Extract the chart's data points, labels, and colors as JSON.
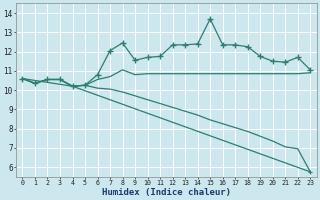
{
  "xlabel": "Humidex (Indice chaleur)",
  "xlim": [
    -0.5,
    23.5
  ],
  "ylim": [
    5.5,
    14.5
  ],
  "yticks": [
    6,
    7,
    8,
    9,
    10,
    11,
    12,
    13,
    14
  ],
  "xticks": [
    0,
    1,
    2,
    3,
    4,
    5,
    6,
    7,
    8,
    9,
    10,
    11,
    12,
    13,
    14,
    15,
    16,
    17,
    18,
    19,
    20,
    21,
    22,
    23
  ],
  "bg_color": "#cce8ee",
  "grid_color": "#ffffff",
  "line_color": "#2e7d6e",
  "line1_x": [
    0,
    1,
    2,
    3,
    4,
    5,
    6,
    7,
    8,
    9,
    10,
    11,
    12,
    13,
    14,
    15,
    16,
    17,
    18,
    19,
    20,
    21,
    22,
    23
  ],
  "line1_y": [
    10.6,
    10.35,
    10.55,
    10.55,
    10.2,
    10.25,
    10.8,
    12.05,
    12.45,
    11.55,
    11.7,
    11.75,
    12.35,
    12.35,
    12.4,
    13.7,
    12.35,
    12.35,
    12.25,
    11.75,
    11.5,
    11.45,
    11.7,
    11.05
  ],
  "line2_x": [
    0,
    1,
    2,
    3,
    4,
    5,
    6,
    7,
    8,
    9,
    10,
    11,
    12,
    13,
    14,
    15,
    16,
    17,
    18,
    19,
    20,
    21,
    22,
    23
  ],
  "line2_y": [
    10.6,
    10.35,
    10.55,
    10.55,
    10.2,
    10.25,
    10.55,
    10.7,
    11.05,
    10.8,
    10.85,
    10.85,
    10.85,
    10.85,
    10.85,
    10.85,
    10.85,
    10.85,
    10.85,
    10.85,
    10.85,
    10.85,
    10.85,
    10.9
  ],
  "line3_x": [
    0,
    1,
    2,
    3,
    4,
    5,
    6,
    7,
    8,
    9,
    10,
    11,
    12,
    13,
    14,
    15,
    16,
    17,
    18,
    19,
    20,
    21,
    22,
    23
  ],
  "line3_y": [
    10.6,
    10.35,
    10.55,
    10.55,
    10.2,
    10.25,
    10.1,
    10.05,
    9.9,
    9.7,
    9.5,
    9.3,
    9.1,
    8.9,
    8.7,
    8.45,
    8.25,
    8.05,
    7.85,
    7.6,
    7.35,
    7.05,
    6.95,
    5.75
  ],
  "line4_x": [
    0,
    4,
    23
  ],
  "line4_y": [
    10.6,
    10.2,
    5.75
  ]
}
